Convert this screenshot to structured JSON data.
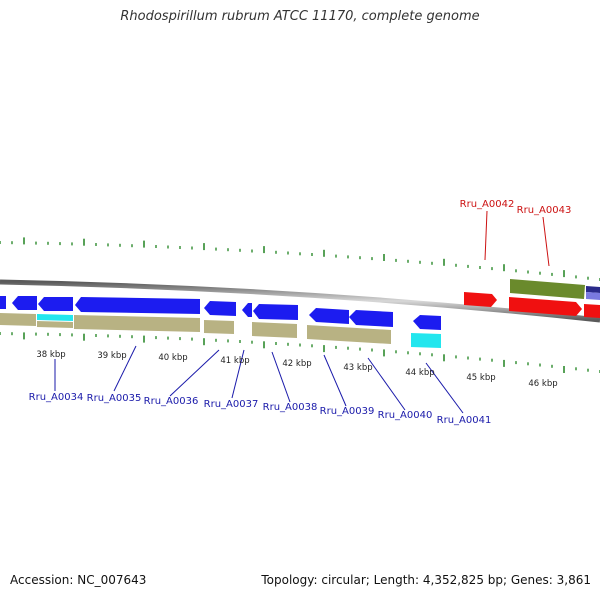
{
  "title": "Rhodospirillum rubrum ATCC 11170, complete genome",
  "footer": {
    "accession": "Accession: NC_007643",
    "summary": "Topology: circular; Length: 4,352,825 bp; Genes: 3,861"
  },
  "colors": {
    "tick": "#2e8b2e",
    "backbone": "#8c8c8c",
    "gene_blue": "#1c1cf0",
    "gene_tan": "#b8b283",
    "gene_cyan": "#22e6ee",
    "gene_red": "#f01010",
    "gene_olive": "#6a8a2c",
    "label_blue": "#1a1aaa",
    "label_red": "#cc1111"
  },
  "scale_labels": [
    "38 kbp",
    "39 kbp",
    "40 kbp",
    "41 kbp",
    "42 kbp",
    "43 kbp",
    "44 kbp",
    "45 kbp",
    "46 kbp"
  ],
  "gene_labels_blue": [
    "Rru_A0034",
    "Rru_A0035",
    "Rru_A0036",
    "Rru_A0037",
    "Rru_A0038",
    "Rru_A0039",
    "Rru_A0040",
    "Rru_A0041"
  ],
  "gene_labels_red": [
    "Rru_A0042",
    "Rru_A0043"
  ]
}
